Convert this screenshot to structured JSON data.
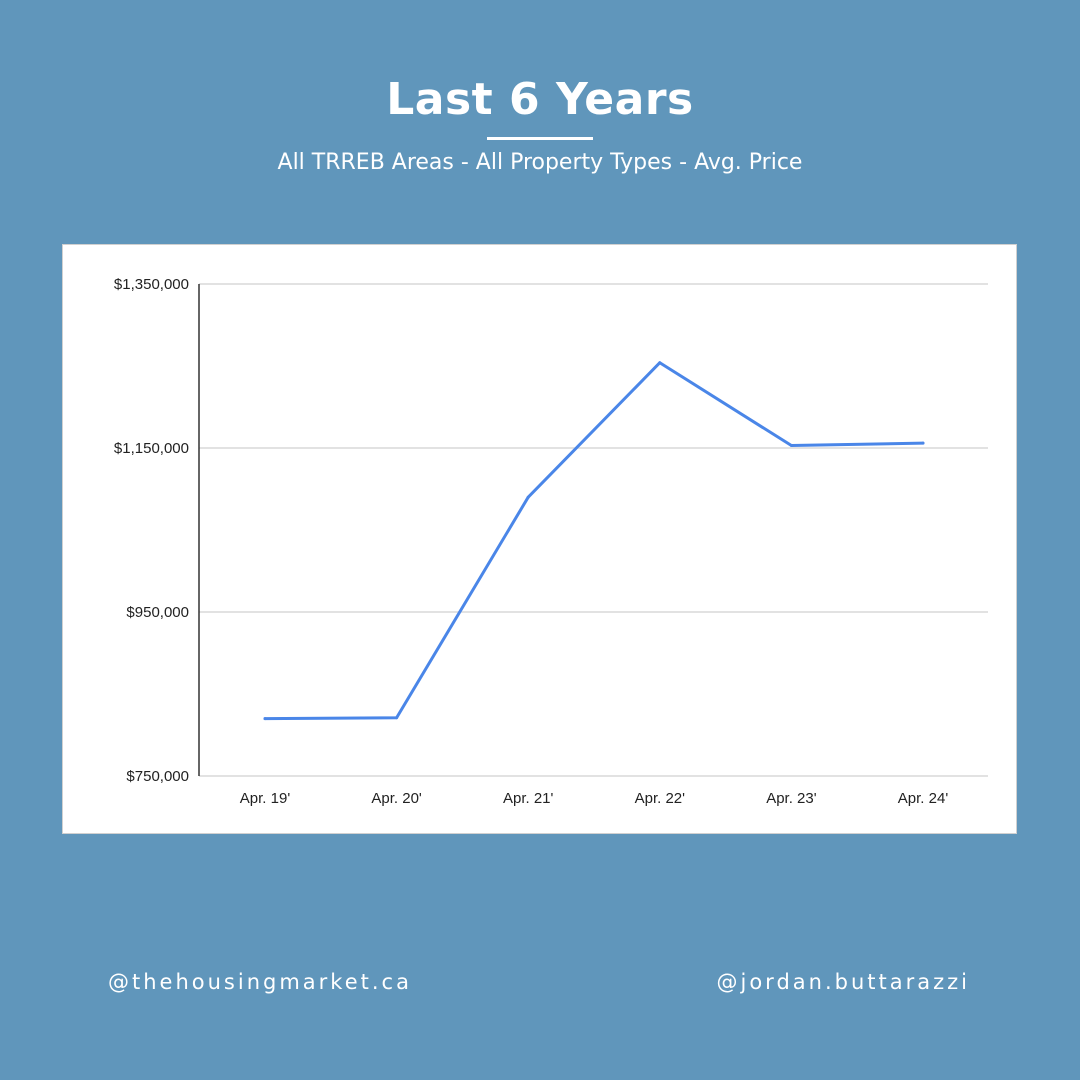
{
  "header": {
    "title": "Last 6 Years",
    "subtitle": "All TRREB Areas - All Property Types - Avg. Price"
  },
  "footer": {
    "left_handle": "@thehousingmarket.ca",
    "right_handle": "@jordan.buttarazzi"
  },
  "colors": {
    "background": "#6096bb",
    "line": "#4a86e8",
    "grid": "#d9d9d9",
    "card": "#ffffff"
  },
  "chart_data": {
    "type": "line",
    "categories": [
      "Apr. 19'",
      "Apr. 20'",
      "Apr. 21'",
      "Apr. 22'",
      "Apr. 23'",
      "Apr. 24'"
    ],
    "series": [
      {
        "values": [
          820000,
          821000,
          1090000,
          1254000,
          1153000,
          1156000
        ]
      }
    ],
    "ylim": [
      750000,
      1350000
    ],
    "yticks": [
      750000,
      950000,
      1150000,
      1350000
    ],
    "ytick_labels": [
      "$750,000",
      "$950,000",
      "$1,150,000",
      "$1,350,000"
    ],
    "grid": true,
    "legend": "none"
  }
}
